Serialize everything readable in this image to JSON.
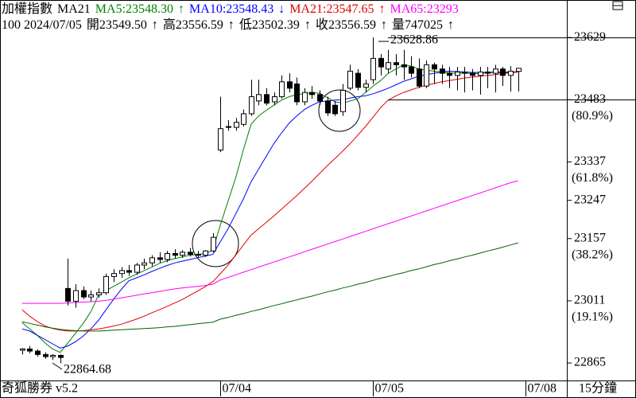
{
  "header": {
    "line1": [
      {
        "text": "加權指數",
        "color": "#000000"
      },
      {
        "text": "MA21",
        "color": "#000000"
      },
      {
        "text": "MA5:23548.30",
        "color": "#008000"
      },
      {
        "text": "↑",
        "color": "#008000"
      },
      {
        "text": "MA10:23548.43",
        "color": "#0000ff"
      },
      {
        "text": "↓",
        "color": "#0000ff"
      },
      {
        "text": "MA21:23547.65",
        "color": "#e00000"
      },
      {
        "text": "↑",
        "color": "#e00000"
      },
      {
        "text": "MA65:23293",
        "color": "#ff00ff"
      }
    ],
    "line2": [
      {
        "text": "100 2024/07/05",
        "color": "#000000"
      },
      {
        "text": "開23549.50",
        "color": "#000000"
      },
      {
        "text": "↑",
        "color": "#000000"
      },
      {
        "text": "高23556.59",
        "color": "#000000"
      },
      {
        "text": "↑",
        "color": "#000000"
      },
      {
        "text": "低23502.39",
        "color": "#000000"
      },
      {
        "text": "↑",
        "color": "#000000"
      },
      {
        "text": "收23556.59",
        "color": "#000000"
      },
      {
        "text": "↑",
        "color": "#000000"
      },
      {
        "text": "量747025",
        "color": "#000000"
      },
      {
        "text": "↑",
        "color": "#000000"
      }
    ]
  },
  "chart_data": {
    "type": "candlestick",
    "up_color": "#ffffff",
    "down_color": "#000000",
    "open": [
      22895,
      22898,
      22893,
      22885,
      22880,
      22883,
      23040,
      23010,
      23035,
      23020,
      23025,
      23030,
      23068,
      23075,
      23082,
      23078,
      23095,
      23100,
      23112,
      23108,
      23122,
      23118,
      23125,
      23120,
      23118,
      23128,
      23365,
      23420,
      23418,
      23425,
      23450,
      23480,
      23495,
      23478,
      23490,
      23525,
      23520,
      23478,
      23500,
      23495,
      23480,
      23470,
      23455,
      23510,
      23545,
      23512,
      23530,
      23580,
      23555,
      23570,
      23565,
      23560,
      23555,
      23515,
      23565,
      23555,
      23545,
      23540,
      23548,
      23545,
      23540,
      23548,
      23545,
      23555,
      23540,
      23549.5
    ],
    "high": [
      22900,
      22905,
      22897,
      22890,
      22886,
      22885,
      23110,
      23050,
      23045,
      23035,
      23040,
      23075,
      23085,
      23090,
      23095,
      23100,
      23110,
      23118,
      23125,
      23128,
      23132,
      23130,
      23135,
      23128,
      23130,
      23170,
      23490,
      23435,
      23440,
      23460,
      23530,
      23530,
      23510,
      23500,
      23540,
      23545,
      23535,
      23510,
      23515,
      23505,
      23490,
      23480,
      23520,
      23565,
      23555,
      23530,
      23628.86,
      23590,
      23600,
      23590,
      23600,
      23585,
      23580,
      23575,
      23570,
      23565,
      23560,
      23560,
      23560,
      23555,
      23560,
      23560,
      23565,
      23560,
      23562,
      23556.59
    ],
    "low": [
      22885,
      22888,
      22880,
      22875,
      22872,
      22864.68,
      23000,
      22995,
      23015,
      23010,
      23018,
      23025,
      23055,
      23065,
      23070,
      23072,
      23085,
      23092,
      23100,
      23102,
      23110,
      23112,
      23115,
      23112,
      23114,
      23125,
      23360,
      23410,
      23410,
      23420,
      23445,
      23470,
      23470,
      23470,
      23485,
      23500,
      23470,
      23470,
      23485,
      23470,
      23445,
      23445,
      23445,
      23505,
      23505,
      23500,
      23520,
      23540,
      23545,
      23540,
      23530,
      23535,
      23510,
      23510,
      23520,
      23520,
      23510,
      23505,
      23500,
      23505,
      23495,
      23510,
      23500,
      23515,
      23502,
      23502.39
    ],
    "close": [
      22898,
      22893,
      22885,
      22880,
      22883,
      22878,
      23010,
      23035,
      23020,
      23025,
      23030,
      23068,
      23075,
      23082,
      23078,
      23095,
      23100,
      23112,
      23108,
      23122,
      23118,
      23125,
      23120,
      23118,
      23128,
      23160,
      23415,
      23418,
      23430,
      23450,
      23490,
      23495,
      23475,
      23490,
      23525,
      23510,
      23478,
      23500,
      23495,
      23480,
      23452,
      23450,
      23505,
      23550,
      23512,
      23520,
      23580,
      23560,
      23570,
      23565,
      23560,
      23545,
      23515,
      23565,
      23555,
      23545,
      23540,
      23548,
      23545,
      23540,
      23548,
      23545,
      23555,
      23540,
      23550,
      23556.59
    ],
    "series": [
      {
        "name": "MA5",
        "color": "#008000",
        "values": [
          22960,
          22945,
          22930,
          22912,
          22898,
          22890,
          22912,
          22935,
          22958,
          22985,
          23024,
          23035,
          23045,
          23055,
          23065,
          23074,
          23082,
          23090,
          23099,
          23105,
          23110,
          23114,
          23118,
          23120,
          23122,
          23130,
          23190,
          23245,
          23300,
          23365,
          23425,
          23445,
          23458,
          23470,
          23482,
          23490,
          23495,
          23497,
          23500,
          23498,
          23488,
          23478,
          23475,
          23480,
          23485,
          23500,
          23515,
          23528,
          23545,
          23555,
          23565,
          23562,
          23555,
          23552,
          23550,
          23548,
          23546,
          23545,
          23546,
          23544,
          23545,
          23546,
          23547,
          23546,
          23548,
          23548.3
        ]
      },
      {
        "name": "MA10",
        "color": "#0000ff",
        "values": [
          22945,
          22940,
          22930,
          22920,
          22910,
          22900,
          22905,
          22915,
          22928,
          22945,
          22965,
          22990,
          23015,
          23038,
          23058,
          23065,
          23072,
          23080,
          23087,
          23094,
          23100,
          23104,
          23108,
          23112,
          23116,
          23120,
          23150,
          23180,
          23215,
          23250,
          23290,
          23320,
          23350,
          23380,
          23405,
          23428,
          23445,
          23460,
          23470,
          23478,
          23480,
          23482,
          23483,
          23487,
          23490,
          23492,
          23497,
          23503,
          23510,
          23518,
          23526,
          23532,
          23538,
          23542,
          23545,
          23548,
          23550,
          23549,
          23548,
          23547,
          23547,
          23547,
          23548,
          23548,
          23548,
          23548.43
        ]
      },
      {
        "name": "MA21",
        "color": "#e00000",
        "values": [
          22990,
          22975,
          22962,
          22952,
          22946,
          22942,
          22940,
          22940,
          22941,
          22943,
          22945,
          22948,
          22952,
          22956,
          22962,
          22968,
          22975,
          22983,
          22990,
          22998,
          23006,
          23014,
          23024,
          23034,
          23044,
          23056,
          23075,
          23095,
          23118,
          23142,
          23165,
          23180,
          23195,
          23210,
          23226,
          23242,
          23258,
          23275,
          23292,
          23310,
          23328,
          23345,
          23362,
          23380,
          23400,
          23420,
          23442,
          23465,
          23482,
          23492,
          23500,
          23506,
          23512,
          23517,
          23521,
          23525,
          23528,
          23531,
          23534,
          23536,
          23538,
          23540,
          23542,
          23544,
          23546,
          23547.65
        ]
      },
      {
        "name": "MA65",
        "color": "#ff00ff",
        "values": [
          23005,
          23005,
          23005,
          23005,
          23005,
          23005,
          23006,
          23007,
          23008,
          23009,
          23010,
          23012,
          23015,
          23018,
          23021,
          23024,
          23027,
          23030,
          23033,
          23036,
          23039,
          23041,
          23043,
          23045,
          23047,
          23050,
          23060,
          23066,
          23072,
          23078,
          23084,
          23090,
          23096,
          23102,
          23108,
          23114,
          23120,
          23126,
          23132,
          23138,
          23144,
          23150,
          23156,
          23162,
          23168,
          23174,
          23180,
          23186,
          23192,
          23198,
          23204,
          23210,
          23216,
          23222,
          23228,
          23234,
          23240,
          23246,
          23252,
          23258,
          23264,
          23270,
          23276,
          23282,
          23288,
          23293
        ]
      },
      {
        "color": "#006400",
        "values": [
          22962,
          22958,
          22954,
          22950,
          22947,
          22944,
          22942,
          22941,
          22940,
          22940,
          22940,
          22941,
          22942,
          22943,
          22944,
          22945,
          22946,
          22947,
          22948,
          22950,
          22951,
          22953,
          22955,
          22957,
          22959,
          22961,
          22968,
          22972,
          22977,
          22981,
          22986,
          22990,
          22995,
          23000,
          23004,
          23009,
          23013,
          23018,
          23022,
          23027,
          23032,
          23036,
          23041,
          23045,
          23050,
          23054,
          23059,
          23064,
          23068,
          23073,
          23077,
          23082,
          23086,
          23091,
          23096,
          23100,
          23105,
          23109,
          23114,
          23118,
          23123,
          23128,
          23132,
          23137,
          23142,
          23147
        ]
      }
    ],
    "ylim": [
      22824,
      23717
    ],
    "yticks": [
      23629,
      23483,
      23337,
      23247,
      23157,
      23011,
      22865
    ],
    "fib_levels": [
      {
        "value": 23483,
        "label": "(80.9%)"
      },
      {
        "value": 23337,
        "label": "(61.8%)"
      },
      {
        "value": 23157,
        "label": "(38.2%)"
      },
      {
        "value": 23011,
        "label": "(19.1%)"
      }
    ],
    "hlines": [
      23629,
      23483
    ],
    "xlim": [
      -2.9,
      71.4
    ],
    "xticks": [
      {
        "value": 26,
        "label": "07/04"
      },
      {
        "value": 46,
        "label": "07/05"
      },
      {
        "value": 66,
        "label": "07/08"
      }
    ],
    "annotations": {
      "high": "23628.86",
      "low": "22864.68"
    }
  },
  "footer": {
    "app": "奇狐勝券 v5.2",
    "period": "15分鐘"
  }
}
